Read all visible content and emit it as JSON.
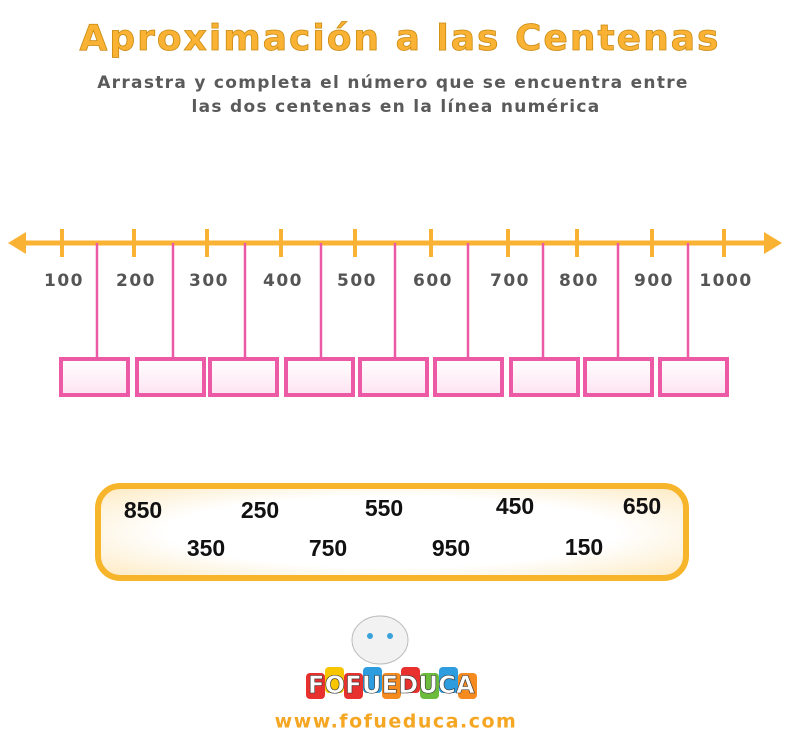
{
  "header": {
    "title": "Aproximación a las Centenas",
    "instructions": [
      "Arrastra y completa el número que se encuentra entre",
      "las dos centenas en la línea numérica"
    ]
  },
  "number_line": {
    "labels": [
      "100",
      "200",
      "300",
      "400",
      "500",
      "600",
      "700",
      "800",
      "900",
      "1000"
    ]
  },
  "answer_bank": {
    "items": [
      "850",
      "250",
      "550",
      "450",
      "650",
      "350",
      "750",
      "950",
      "150"
    ]
  },
  "footer": {
    "logo": "FOFUEDUCA",
    "url": "www.fofueduca.com"
  }
}
